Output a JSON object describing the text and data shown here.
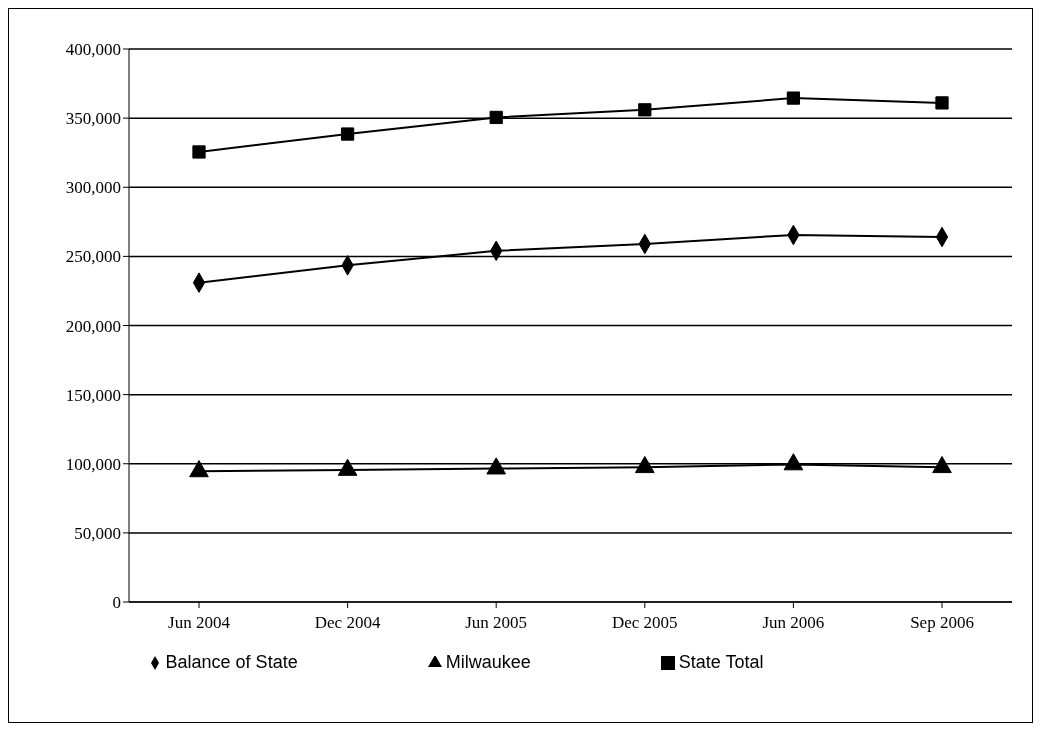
{
  "chart_data": {
    "type": "line",
    "categories": [
      "Jun 2004",
      "Dec 2004",
      "Jun 2005",
      "Dec 2005",
      "Jun 2006",
      "Sep 2006"
    ],
    "series": [
      {
        "name": "Balance of State",
        "color": "#000000",
        "marker": "diamond",
        "values": [
          231000,
          243500,
          254000,
          259000,
          265500,
          264000
        ]
      },
      {
        "name": "Milwaukee",
        "color": "#000000",
        "marker": "triangle",
        "values": [
          94500,
          95500,
          96500,
          97500,
          99500,
          97500
        ]
      },
      {
        "name": "State Total",
        "color": "#000000",
        "marker": "square",
        "values": [
          325500,
          338500,
          350500,
          356000,
          364500,
          361000
        ]
      }
    ],
    "ylim": [
      0,
      400000
    ],
    "yticks": [
      0,
      {
        "value": 50000,
        "label": "50,000"
      },
      {
        "value": 100000,
        "label": "100,000"
      },
      {
        "value": 150000,
        "label": "150,000"
      },
      {
        "value": 200000,
        "label": "200,000"
      },
      {
        "value": 250000,
        "label": "250,000"
      },
      {
        "value": 300000,
        "label": "300,000"
      },
      {
        "value": 350000,
        "label": "350,000"
      },
      {
        "value": 400000,
        "label": "400,000"
      }
    ],
    "grid": "y",
    "legend": "bottom",
    "line_style": "solid"
  }
}
